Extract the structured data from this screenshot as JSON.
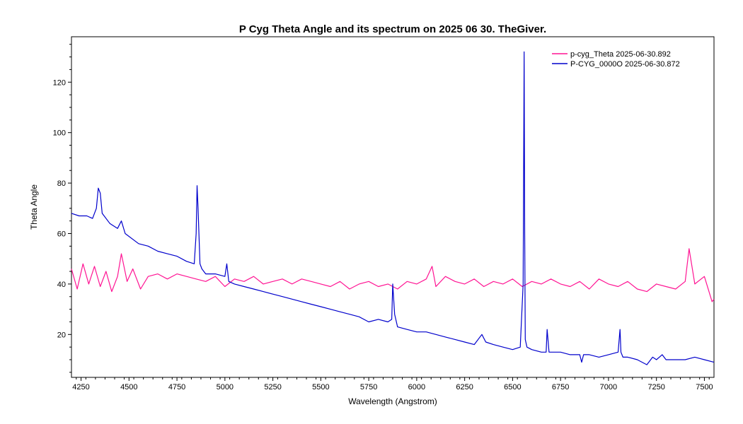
{
  "chart_data": {
    "type": "line",
    "title": "P Cyg Theta Angle and its spectrum on 2025 06 30. TheGiver.",
    "xlabel": "Wavelength (Angstrom)",
    "ylabel": "Theta  Angle",
    "xlim": [
      4200,
      7550
    ],
    "ylim": [
      3,
      138
    ],
    "xticks": [
      4250,
      4500,
      4750,
      5000,
      5250,
      5500,
      5750,
      6000,
      6250,
      6500,
      6750,
      7000,
      7250,
      7500
    ],
    "yticks": [
      20,
      40,
      60,
      80,
      100,
      120
    ],
    "grid": false,
    "legend_position": "top-right",
    "colors": {
      "theta": "#ff1493",
      "spectrum": "#0000cc"
    },
    "series": [
      {
        "name": "p-cyg_Theta  2025-06-30.892",
        "x": [
          4200,
          4230,
          4260,
          4290,
          4320,
          4350,
          4380,
          4410,
          4440,
          4460,
          4490,
          4520,
          4560,
          4600,
          4650,
          4700,
          4750,
          4800,
          4850,
          4900,
          4950,
          5000,
          5050,
          5100,
          5150,
          5200,
          5250,
          5300,
          5350,
          5400,
          5450,
          5500,
          5550,
          5600,
          5650,
          5700,
          5750,
          5800,
          5850,
          5900,
          5950,
          6000,
          6050,
          6080,
          6100,
          6150,
          6200,
          6250,
          6300,
          6350,
          6400,
          6450,
          6500,
          6550,
          6600,
          6650,
          6700,
          6750,
          6800,
          6850,
          6900,
          6950,
          7000,
          7050,
          7100,
          7150,
          7200,
          7250,
          7300,
          7350,
          7400,
          7420,
          7450,
          7500,
          7540,
          7550
        ],
        "y": [
          46,
          38,
          48,
          40,
          47,
          39,
          45,
          37,
          43,
          52,
          41,
          46,
          38,
          43,
          44,
          42,
          44,
          43,
          42,
          41,
          43,
          39,
          42,
          41,
          43,
          40,
          41,
          42,
          40,
          42,
          41,
          40,
          39,
          41,
          38,
          40,
          41,
          39,
          40,
          38,
          41,
          40,
          42,
          47,
          39,
          43,
          41,
          40,
          42,
          39,
          41,
          40,
          42,
          39,
          41,
          40,
          42,
          40,
          39,
          41,
          38,
          42,
          40,
          39,
          41,
          38,
          37,
          40,
          39,
          38,
          41,
          54,
          40,
          43,
          33,
          34
        ]
      },
      {
        "name": "P-CYG_0000O  2025-06-30.872",
        "x": [
          4200,
          4240,
          4280,
          4310,
          4330,
          4340,
          4350,
          4360,
          4400,
          4440,
          4460,
          4480,
          4550,
          4600,
          4650,
          4700,
          4750,
          4800,
          4840,
          4850,
          4855,
          4860,
          4870,
          4880,
          4900,
          4950,
          5000,
          5010,
          5020,
          5050,
          5100,
          5150,
          5200,
          5250,
          5300,
          5350,
          5400,
          5450,
          5500,
          5550,
          5600,
          5650,
          5700,
          5750,
          5800,
          5850,
          5870,
          5875,
          5885,
          5900,
          5950,
          6000,
          6050,
          6100,
          6150,
          6200,
          6250,
          6300,
          6340,
          6360,
          6400,
          6450,
          6500,
          6540,
          6555,
          6560,
          6563,
          6566,
          6575,
          6600,
          6650,
          6675,
          6680,
          6690,
          6750,
          6800,
          6850,
          6860,
          6870,
          6900,
          6950,
          7000,
          7050,
          7060,
          7065,
          7075,
          7100,
          7150,
          7200,
          7230,
          7250,
          7280,
          7300,
          7350,
          7400,
          7450,
          7500,
          7550
        ],
        "y": [
          68,
          67,
          67,
          66,
          70,
          78,
          76,
          68,
          64,
          62,
          65,
          60,
          56,
          55,
          53,
          52,
          51,
          49,
          48,
          60,
          79,
          70,
          48,
          46,
          44,
          44,
          43,
          48,
          41,
          40,
          39,
          38,
          37,
          36,
          35,
          34,
          33,
          32,
          31,
          30,
          29,
          28,
          27,
          25,
          26,
          25,
          26,
          40,
          28,
          23,
          22,
          21,
          21,
          20,
          19,
          18,
          17,
          16,
          20,
          17,
          16,
          15,
          14,
          15,
          40,
          132,
          60,
          18,
          15,
          14,
          13,
          13,
          22,
          13,
          13,
          12,
          12,
          9,
          12,
          12,
          11,
          12,
          13,
          22,
          13,
          11,
          11,
          10,
          8,
          11,
          10,
          12,
          10,
          10,
          10,
          11,
          10,
          9
        ]
      }
    ]
  }
}
